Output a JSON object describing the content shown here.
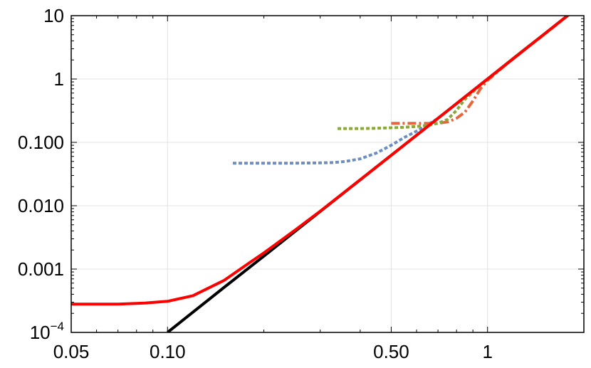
{
  "chart_data": {
    "type": "line",
    "title": "",
    "xlabel": "",
    "ylabel": "",
    "x_scale": "log",
    "y_scale": "log",
    "xlim": [
      0.05,
      2.0
    ],
    "ylim": [
      0.0001,
      10
    ],
    "grid": true,
    "x_ticks": [
      {
        "value": 0.05,
        "label": "0.05"
      },
      {
        "value": 0.1,
        "label": "0.10"
      },
      {
        "value": 0.5,
        "label": "0.50"
      },
      {
        "value": 1,
        "label": "1"
      }
    ],
    "y_ticks": [
      {
        "value": 0.0001,
        "label": "10",
        "sup": "−4"
      },
      {
        "value": 0.001,
        "label": "0.001"
      },
      {
        "value": 0.01,
        "label": "0.010"
      },
      {
        "value": 0.1,
        "label": "0.100"
      },
      {
        "value": 1,
        "label": "1"
      },
      {
        "value": 10,
        "label": "10"
      }
    ],
    "series": [
      {
        "color": "#000000",
        "style": "solid",
        "x": [
          0.1,
          0.15,
          0.2,
          0.3,
          0.5,
          0.7,
          1.0,
          1.5,
          2.0
        ],
        "y": [
          0.0001,
          0.00051,
          0.0016,
          0.0081,
          0.0625,
          0.24,
          1.0,
          5.06,
          16.0
        ]
      },
      {
        "color": "#6b8fc2",
        "style": "dotted",
        "x": [
          0.16,
          0.2,
          0.25,
          0.3,
          0.33,
          0.36,
          0.4,
          0.45,
          0.5,
          0.55,
          0.6,
          0.65,
          0.7,
          0.8,
          0.9,
          1.0,
          1.3,
          1.6,
          1.95
        ],
        "y": [
          0.047,
          0.047,
          0.047,
          0.0475,
          0.048,
          0.05,
          0.055,
          0.068,
          0.09,
          0.12,
          0.15,
          0.19,
          0.24,
          0.41,
          0.66,
          1.0,
          2.9,
          6.5,
          14.5
        ]
      },
      {
        "color": "#e8663d",
        "style": "dash-dot",
        "x": [
          0.5,
          0.55,
          0.6,
          0.65,
          0.7,
          0.75,
          0.8,
          0.85,
          0.9,
          0.95,
          1.0,
          1.2,
          1.5,
          1.95
        ],
        "y": [
          0.2,
          0.2,
          0.2,
          0.2,
          0.2,
          0.21,
          0.24,
          0.3,
          0.45,
          0.7,
          0.95,
          2.1,
          5.0,
          14.5
        ]
      },
      {
        "color": "#8aa83a",
        "style": "dotted",
        "x": [
          0.34,
          0.4,
          0.45,
          0.5,
          0.55,
          0.6,
          0.65,
          0.7,
          0.75,
          0.8,
          0.85,
          0.9,
          0.95,
          1.0,
          1.3,
          1.6,
          1.95
        ],
        "y": [
          0.165,
          0.165,
          0.167,
          0.17,
          0.173,
          0.178,
          0.185,
          0.2,
          0.23,
          0.32,
          0.48,
          0.62,
          0.8,
          1.0,
          2.9,
          6.5,
          14.5
        ]
      },
      {
        "color": "#ff0000",
        "style": "solid",
        "x": [
          0.05,
          0.07,
          0.085,
          0.1,
          0.12,
          0.15,
          0.18,
          0.2,
          0.25,
          0.3,
          0.5,
          0.7,
          1.0,
          1.5,
          1.95
        ],
        "y": [
          0.00028,
          0.00028,
          0.00029,
          0.00031,
          0.00038,
          0.00066,
          0.00125,
          0.0018,
          0.0041,
          0.0082,
          0.0625,
          0.24,
          1.0,
          5.06,
          14.5
        ]
      }
    ]
  }
}
